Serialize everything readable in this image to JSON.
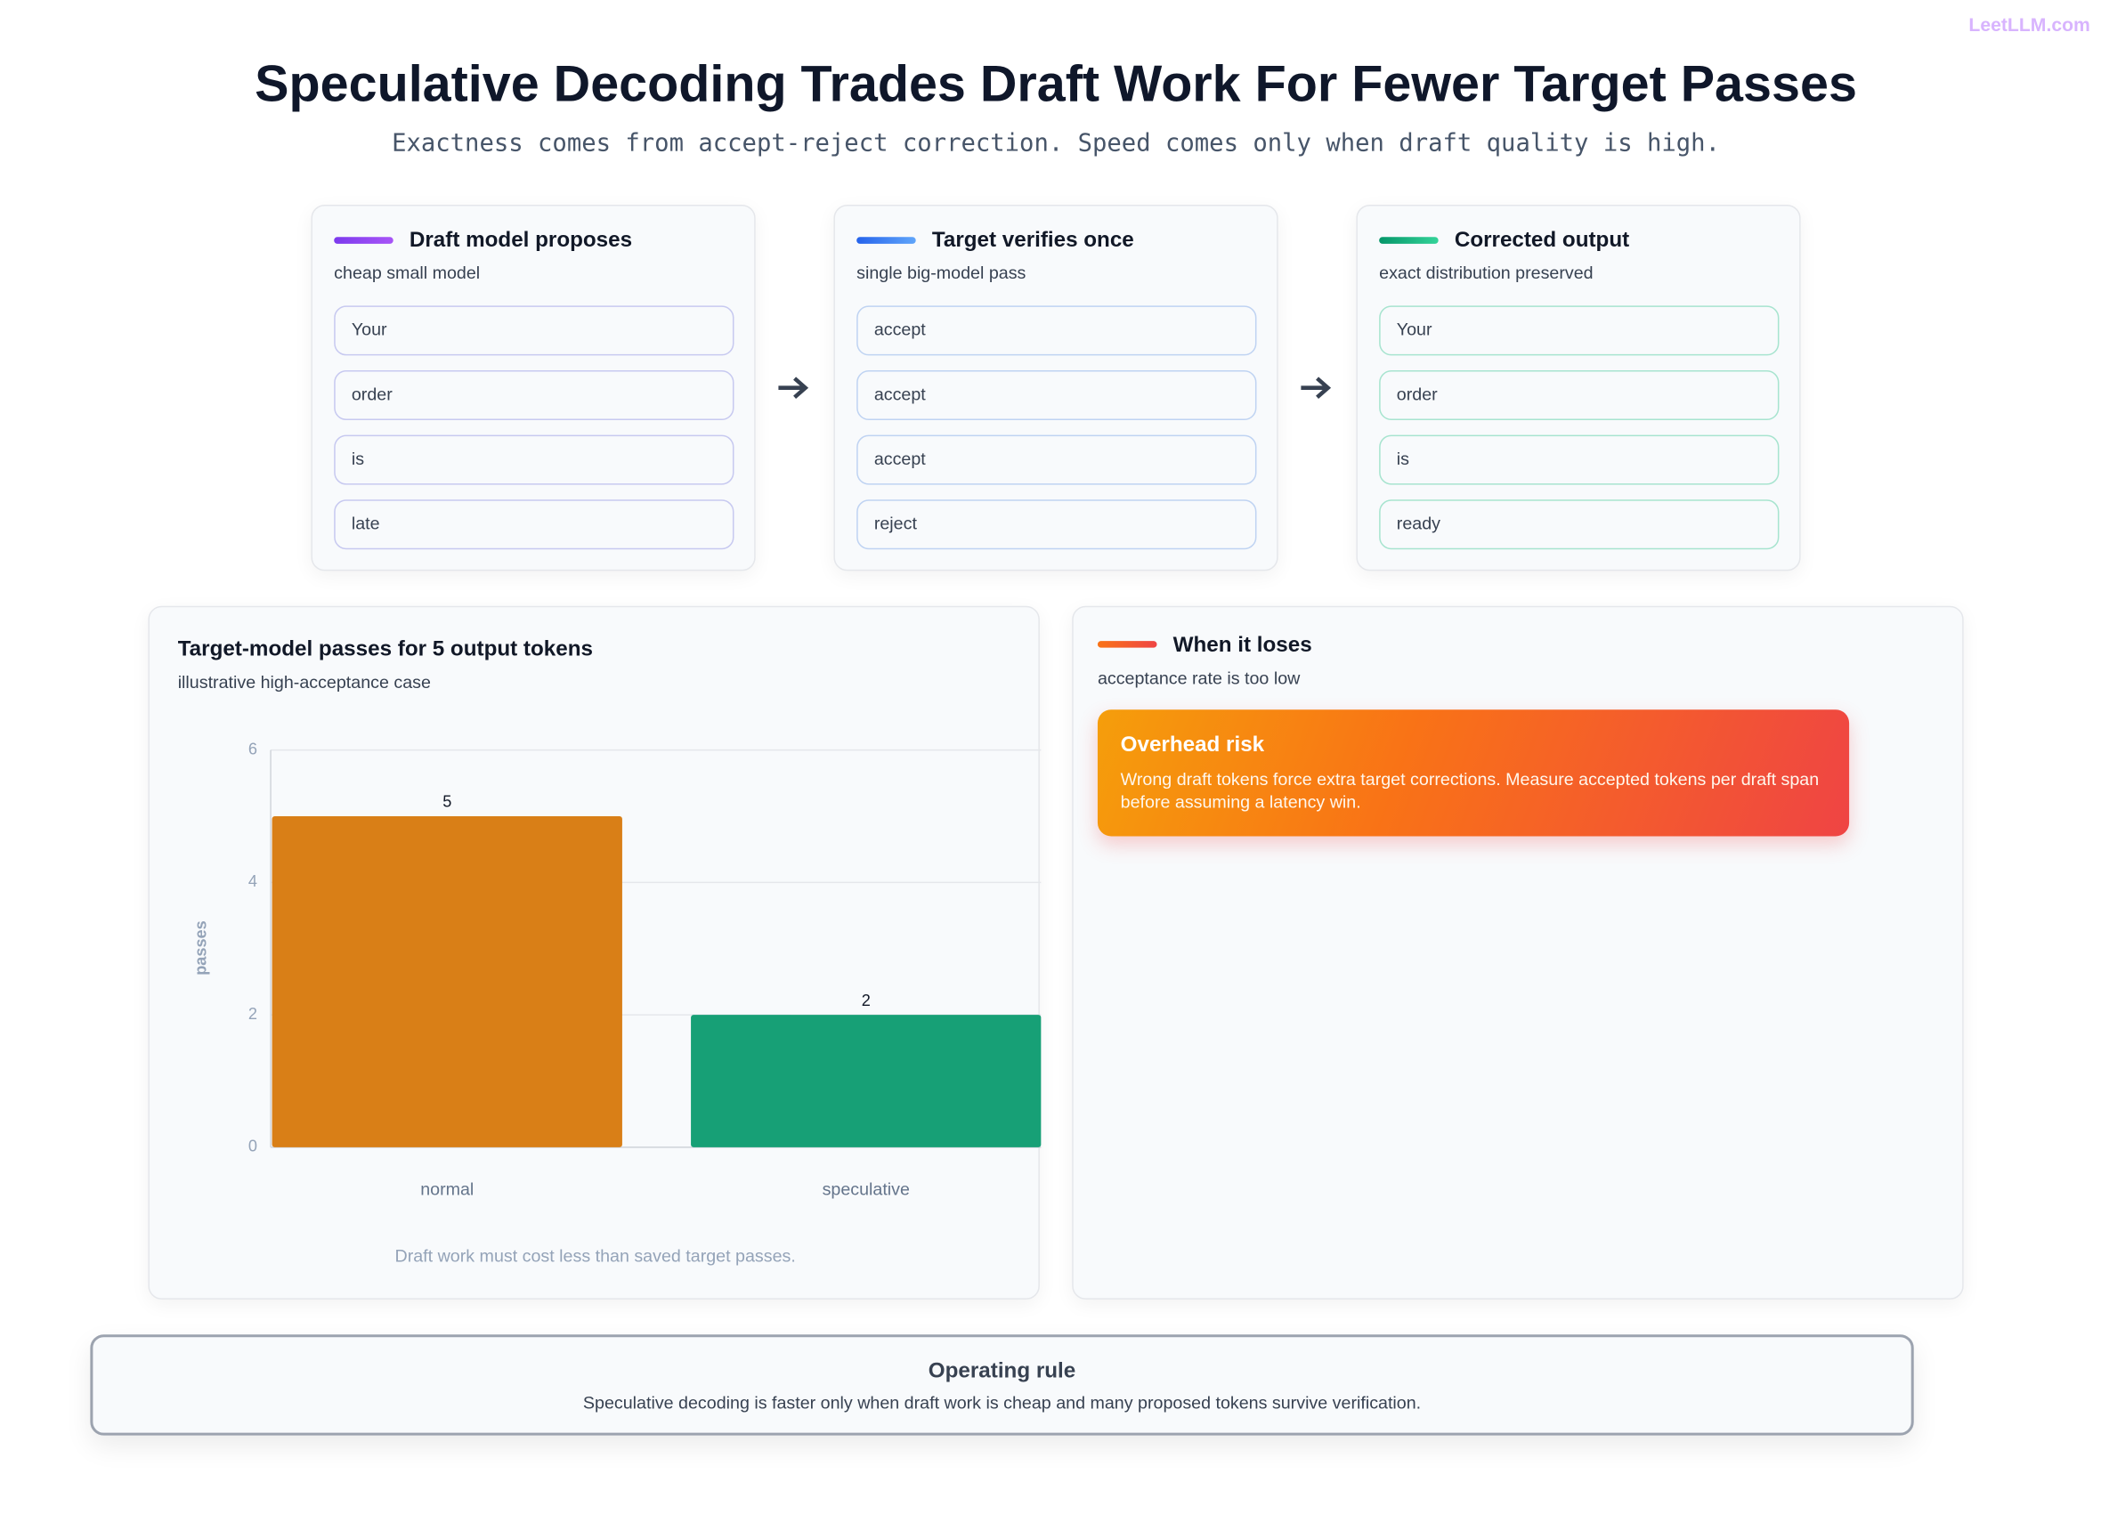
{
  "brand": "LeetLLM.com",
  "header": {
    "title": "Speculative Decoding Trades Draft Work For Fewer Target Passes",
    "subtitle": "Exactness comes from accept-reject correction. Speed comes only when draft quality is high."
  },
  "stages": [
    {
      "title": "Draft model proposes",
      "subtitle": "cheap small model",
      "tokens": [
        "Your",
        "order",
        "is",
        "late"
      ]
    },
    {
      "title": "Target verifies once",
      "subtitle": "single big-model pass",
      "tokens": [
        "accept",
        "accept",
        "accept",
        "reject"
      ]
    },
    {
      "title": "Corrected output",
      "subtitle": "exact distribution preserved",
      "tokens": [
        "Your",
        "order",
        "is",
        "ready"
      ]
    }
  ],
  "chart_data": {
    "type": "bar",
    "title": "Target-model passes for 5 output tokens",
    "subtitle": "illustrative high-acceptance case",
    "y_label": "passes",
    "categories": [
      "normal",
      "speculative"
    ],
    "values": [
      5,
      2
    ],
    "colors": [
      "#d97f17",
      "#17a076"
    ],
    "ylim": [
      0,
      6
    ],
    "yticks": [
      0,
      2,
      4,
      6
    ],
    "grid": true,
    "note": "Draft work must cost less than saved target passes."
  },
  "risk": {
    "title": "When it loses",
    "subtitle": "acceptance rate is too low",
    "callout": {
      "title": "Overhead risk",
      "text": "Wrong draft tokens force extra target corrections. Measure accepted tokens per draft span before assuming a latency win."
    }
  },
  "footer": {
    "title": "Operating rule",
    "text": "Speculative decoding is faster only when draft work is cheap and many proposed tokens survive verification."
  }
}
